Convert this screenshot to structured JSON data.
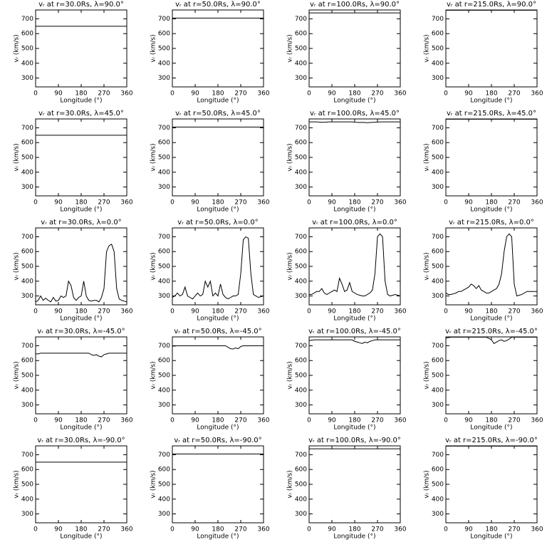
{
  "chart_data": [
    {
      "type": "line",
      "title": "vᵣ at r=30.0Rs, λ=90.0°",
      "xlabel": "Longitude (°)",
      "ylabel": "vᵣ (km/s)",
      "x": [
        0,
        360
      ],
      "values": [
        650,
        650
      ],
      "color": "#000000",
      "xlim": [
        0,
        360
      ],
      "ylim": [
        240,
        760
      ],
      "xticks": [
        0,
        90,
        180,
        270,
        360
      ],
      "yticks": [
        300,
        400,
        500,
        600,
        700
      ]
    },
    {
      "type": "line",
      "title": "vᵣ at r=50.0Rs, λ=90.0°",
      "xlabel": "Longitude (°)",
      "ylabel": "vᵣ (km/s)",
      "x": [
        0,
        360
      ],
      "values": [
        705,
        705
      ],
      "color": "#000000",
      "xlim": [
        0,
        360
      ],
      "ylim": [
        240,
        760
      ],
      "xticks": [
        0,
        90,
        180,
        270,
        360
      ],
      "yticks": [
        300,
        400,
        500,
        600,
        700
      ]
    },
    {
      "type": "line",
      "title": "vᵣ at r=100.0Rs, λ=90.0°",
      "xlabel": "Longitude (°)",
      "ylabel": "vᵣ (km/s)",
      "x": [
        0,
        360
      ],
      "values": [
        740,
        740
      ],
      "color": "#000000",
      "xlim": [
        0,
        360
      ],
      "ylim": [
        240,
        760
      ],
      "xticks": [
        0,
        90,
        180,
        270,
        360
      ],
      "yticks": [
        300,
        400,
        500,
        600,
        700
      ]
    },
    {
      "type": "line",
      "title": "vᵣ at r=215.0Rs, λ=90.0°",
      "xlabel": "Longitude (°)",
      "ylabel": "vᵣ (km/s)",
      "x": [
        0,
        360
      ],
      "values": [
        758,
        758
      ],
      "color": "#000000",
      "xlim": [
        0,
        360
      ],
      "ylim": [
        240,
        760
      ],
      "xticks": [
        0,
        90,
        180,
        270,
        360
      ],
      "yticks": [
        300,
        400,
        500,
        600,
        700
      ]
    },
    {
      "type": "line",
      "title": "vᵣ at r=30.0Rs, λ=45.0°",
      "xlabel": "Longitude (°)",
      "ylabel": "vᵣ (km/s)",
      "x": [
        0,
        360
      ],
      "values": [
        650,
        650
      ],
      "color": "#000000",
      "xlim": [
        0,
        360
      ],
      "ylim": [
        240,
        760
      ],
      "xticks": [
        0,
        90,
        180,
        270,
        360
      ],
      "yticks": [
        300,
        400,
        500,
        600,
        700
      ]
    },
    {
      "type": "line",
      "title": "vᵣ at r=50.0Rs, λ=45.0°",
      "xlabel": "Longitude (°)",
      "ylabel": "vᵣ (km/s)",
      "x": [
        0,
        360
      ],
      "values": [
        705,
        705
      ],
      "color": "#000000",
      "xlim": [
        0,
        360
      ],
      "ylim": [
        240,
        760
      ],
      "xticks": [
        0,
        90,
        180,
        270,
        360
      ],
      "yticks": [
        300,
        400,
        500,
        600,
        700
      ]
    },
    {
      "type": "line",
      "title": "vᵣ at r=100.0Rs, λ=45.0°",
      "xlabel": "Longitude (°)",
      "ylabel": "vᵣ (km/s)",
      "x": [
        0,
        10,
        20,
        30,
        40,
        50,
        60,
        70,
        80,
        90,
        100,
        110,
        120,
        130,
        140,
        150,
        160,
        170,
        180,
        190,
        200,
        210,
        220,
        230,
        240,
        250,
        260,
        270,
        280,
        290,
        300,
        310,
        320,
        330,
        340,
        350,
        360
      ],
      "values": [
        740,
        740,
        740,
        740,
        739,
        738,
        738,
        739,
        740,
        740,
        740,
        740,
        740,
        740,
        740,
        740,
        740,
        740,
        738,
        737,
        736,
        737,
        736,
        735,
        736,
        737,
        738,
        739,
        740,
        740,
        740,
        740,
        740,
        740,
        740,
        740,
        740
      ],
      "color": "#000000",
      "xlim": [
        0,
        360
      ],
      "ylim": [
        240,
        760
      ],
      "xticks": [
        0,
        90,
        180,
        270,
        360
      ],
      "yticks": [
        300,
        400,
        500,
        600,
        700
      ]
    },
    {
      "type": "line",
      "title": "vᵣ at r=215.0Rs, λ=45.0°",
      "xlabel": "Longitude (°)",
      "ylabel": "vᵣ (km/s)",
      "x": [
        0,
        360
      ],
      "values": [
        758,
        758
      ],
      "color": "#000000",
      "xlim": [
        0,
        360
      ],
      "ylim": [
        240,
        760
      ],
      "xticks": [
        0,
        90,
        180,
        270,
        360
      ],
      "yticks": [
        300,
        400,
        500,
        600,
        700
      ]
    },
    {
      "type": "line",
      "title": "vᵣ at r=30.0Rs, λ=0.0°",
      "xlabel": "Longitude (°)",
      "ylabel": "vᵣ (km/s)",
      "x": [
        0,
        10,
        20,
        30,
        40,
        50,
        60,
        70,
        80,
        90,
        100,
        110,
        120,
        130,
        140,
        150,
        160,
        170,
        180,
        190,
        200,
        210,
        220,
        230,
        240,
        250,
        260,
        270,
        280,
        290,
        300,
        310,
        320,
        330,
        340,
        350,
        360
      ],
      "values": [
        260,
        270,
        300,
        270,
        285,
        270,
        260,
        290,
        265,
        270,
        300,
        290,
        300,
        400,
        370,
        290,
        270,
        290,
        300,
        400,
        300,
        270,
        265,
        270,
        270,
        260,
        290,
        350,
        600,
        640,
        650,
        600,
        350,
        280,
        270,
        265,
        260
      ],
      "color": "#000000",
      "xlim": [
        0,
        360
      ],
      "ylim": [
        240,
        760
      ],
      "xticks": [
        0,
        90,
        180,
        270,
        360
      ],
      "yticks": [
        300,
        400,
        500,
        600,
        700
      ]
    },
    {
      "type": "line",
      "title": "vᵣ at r=50.0Rs, λ=0.0°",
      "xlabel": "Longitude (°)",
      "ylabel": "vᵣ (km/s)",
      "x": [
        0,
        10,
        20,
        30,
        40,
        50,
        60,
        70,
        80,
        90,
        100,
        110,
        120,
        130,
        140,
        150,
        160,
        170,
        180,
        190,
        200,
        210,
        220,
        230,
        240,
        250,
        260,
        270,
        280,
        290,
        300,
        310,
        320,
        330,
        340,
        350,
        360
      ],
      "values": [
        290,
        300,
        320,
        300,
        310,
        360,
        300,
        290,
        280,
        300,
        320,
        300,
        310,
        400,
        360,
        400,
        300,
        320,
        300,
        380,
        310,
        290,
        280,
        290,
        300,
        300,
        310,
        450,
        680,
        700,
        690,
        450,
        310,
        300,
        290,
        295,
        300
      ],
      "color": "#000000",
      "xlim": [
        0,
        360
      ],
      "ylim": [
        240,
        760
      ],
      "xticks": [
        0,
        90,
        180,
        270,
        360
      ],
      "yticks": [
        300,
        400,
        500,
        600,
        700
      ]
    },
    {
      "type": "line",
      "title": "vᵣ at r=100.0Rs, λ=0.0°",
      "xlabel": "Longitude (°)",
      "ylabel": "vᵣ (km/s)",
      "x": [
        0,
        10,
        20,
        30,
        40,
        50,
        60,
        70,
        80,
        90,
        100,
        110,
        120,
        130,
        140,
        150,
        160,
        170,
        180,
        190,
        200,
        210,
        220,
        230,
        240,
        250,
        260,
        270,
        280,
        290,
        300,
        310,
        320,
        330,
        340,
        350,
        360
      ],
      "values": [
        310,
        310,
        320,
        330,
        330,
        350,
        320,
        310,
        320,
        330,
        340,
        330,
        420,
        380,
        330,
        340,
        390,
        330,
        320,
        310,
        305,
        300,
        300,
        310,
        320,
        340,
        450,
        700,
        720,
        700,
        400,
        310,
        300,
        305,
        310,
        305,
        300
      ],
      "color": "#000000",
      "xlim": [
        0,
        360
      ],
      "ylim": [
        240,
        760
      ],
      "xticks": [
        0,
        90,
        180,
        270,
        360
      ],
      "yticks": [
        300,
        400,
        500,
        600,
        700
      ]
    },
    {
      "type": "line",
      "title": "vᵣ at r=215.0Rs, λ=0.0°",
      "xlabel": "Longitude (°)",
      "ylabel": "vᵣ (km/s)",
      "x": [
        0,
        10,
        20,
        30,
        40,
        50,
        60,
        70,
        80,
        90,
        100,
        110,
        120,
        130,
        140,
        150,
        160,
        170,
        180,
        190,
        200,
        210,
        220,
        230,
        240,
        250,
        260,
        270,
        280,
        290,
        300,
        310,
        320,
        330,
        340,
        350,
        360
      ],
      "values": [
        320,
        310,
        310,
        315,
        320,
        330,
        330,
        340,
        350,
        360,
        380,
        370,
        350,
        370,
        340,
        330,
        320,
        320,
        330,
        340,
        350,
        380,
        450,
        600,
        700,
        720,
        700,
        380,
        300,
        305,
        310,
        320,
        330,
        330,
        330,
        330,
        330
      ],
      "color": "#000000",
      "xlim": [
        0,
        360
      ],
      "ylim": [
        240,
        760
      ],
      "xticks": [
        0,
        90,
        180,
        270,
        360
      ],
      "yticks": [
        300,
        400,
        500,
        600,
        700
      ]
    },
    {
      "type": "line",
      "title": "vᵣ at r=30.0Rs, λ=-45.0°",
      "xlabel": "Longitude (°)",
      "ylabel": "vᵣ (km/s)",
      "x": [
        0,
        10,
        20,
        30,
        40,
        50,
        60,
        70,
        80,
        90,
        100,
        110,
        120,
        130,
        140,
        150,
        160,
        170,
        180,
        190,
        200,
        210,
        220,
        230,
        240,
        250,
        260,
        270,
        280,
        290,
        300,
        310,
        320,
        330,
        340,
        350,
        360
      ],
      "values": [
        645,
        645,
        650,
        650,
        650,
        650,
        650,
        650,
        650,
        650,
        650,
        650,
        650,
        650,
        650,
        650,
        650,
        650,
        650,
        650,
        650,
        650,
        640,
        635,
        640,
        630,
        625,
        640,
        645,
        650,
        650,
        650,
        650,
        650,
        650,
        650,
        650
      ],
      "color": "#000000",
      "xlim": [
        0,
        360
      ],
      "ylim": [
        240,
        760
      ],
      "xticks": [
        0,
        90,
        180,
        270,
        360
      ],
      "yticks": [
        300,
        400,
        500,
        600,
        700
      ]
    },
    {
      "type": "line",
      "title": "vᵣ at r=50.0Rs, λ=-45.0°",
      "xlabel": "Longitude (°)",
      "ylabel": "vᵣ (km/s)",
      "x": [
        0,
        10,
        20,
        30,
        40,
        50,
        60,
        70,
        80,
        90,
        100,
        110,
        120,
        130,
        140,
        150,
        160,
        170,
        180,
        190,
        200,
        210,
        220,
        230,
        240,
        250,
        260,
        270,
        280,
        290,
        300,
        310,
        320,
        330,
        340,
        350,
        360
      ],
      "values": [
        698,
        698,
        700,
        700,
        700,
        700,
        700,
        700,
        700,
        700,
        700,
        700,
        700,
        700,
        700,
        700,
        700,
        700,
        700,
        700,
        700,
        700,
        690,
        680,
        678,
        685,
        680,
        695,
        700,
        700,
        700,
        700,
        700,
        700,
        700,
        700,
        700
      ],
      "color": "#000000",
      "xlim": [
        0,
        360
      ],
      "ylim": [
        240,
        760
      ],
      "xticks": [
        0,
        90,
        180,
        270,
        360
      ],
      "yticks": [
        300,
        400,
        500,
        600,
        700
      ]
    },
    {
      "type": "line",
      "title": "vᵣ at r=100.0Rs, λ=-45.0°",
      "xlabel": "Longitude (°)",
      "ylabel": "vᵣ (km/s)",
      "x": [
        0,
        10,
        20,
        30,
        40,
        50,
        60,
        70,
        80,
        90,
        100,
        110,
        120,
        130,
        140,
        150,
        160,
        170,
        180,
        190,
        200,
        210,
        220,
        230,
        240,
        250,
        260,
        270,
        280,
        290,
        300,
        310,
        320,
        330,
        340,
        350,
        360
      ],
      "values": [
        735,
        738,
        740,
        740,
        740,
        740,
        740,
        740,
        740,
        740,
        740,
        740,
        740,
        740,
        740,
        740,
        740,
        740,
        730,
        725,
        720,
        715,
        725,
        720,
        730,
        735,
        740,
        740,
        740,
        740,
        740,
        740,
        740,
        740,
        740,
        740,
        740
      ],
      "color": "#000000",
      "xlim": [
        0,
        360
      ],
      "ylim": [
        240,
        760
      ],
      "xticks": [
        0,
        90,
        180,
        270,
        360
      ],
      "yticks": [
        300,
        400,
        500,
        600,
        700
      ]
    },
    {
      "type": "line",
      "title": "vᵣ at r=215.0Rs, λ=-45.0°",
      "xlabel": "Longitude (°)",
      "ylabel": "vᵣ (km/s)",
      "x": [
        0,
        10,
        20,
        30,
        40,
        50,
        60,
        70,
        80,
        90,
        100,
        110,
        120,
        130,
        140,
        150,
        160,
        170,
        180,
        190,
        200,
        210,
        220,
        230,
        240,
        250,
        260,
        270,
        280,
        290,
        300,
        310,
        320,
        330,
        340,
        350,
        360
      ],
      "values": [
        752,
        755,
        758,
        758,
        758,
        758,
        758,
        758,
        758,
        758,
        758,
        758,
        758,
        758,
        758,
        758,
        758,
        750,
        740,
        715,
        725,
        735,
        740,
        730,
        735,
        745,
        758,
        758,
        758,
        758,
        758,
        758,
        758,
        758,
        758,
        758,
        758
      ],
      "color": "#000000",
      "xlim": [
        0,
        360
      ],
      "ylim": [
        240,
        760
      ],
      "xticks": [
        0,
        90,
        180,
        270,
        360
      ],
      "yticks": [
        300,
        400,
        500,
        600,
        700
      ]
    },
    {
      "type": "line",
      "title": "vᵣ at r=30.0Rs, λ=-90.0°",
      "xlabel": "Longitude (°)",
      "ylabel": "vᵣ (km/s)",
      "x": [
        0,
        360
      ],
      "values": [
        650,
        650
      ],
      "color": "#000000",
      "xlim": [
        0,
        360
      ],
      "ylim": [
        240,
        760
      ],
      "xticks": [
        0,
        90,
        180,
        270,
        360
      ],
      "yticks": [
        300,
        400,
        500,
        600,
        700
      ]
    },
    {
      "type": "line",
      "title": "vᵣ at r=50.0Rs, λ=-90.0°",
      "xlabel": "Longitude (°)",
      "ylabel": "vᵣ (km/s)",
      "x": [
        0,
        360
      ],
      "values": [
        705,
        705
      ],
      "color": "#000000",
      "xlim": [
        0,
        360
      ],
      "ylim": [
        240,
        760
      ],
      "xticks": [
        0,
        90,
        180,
        270,
        360
      ],
      "yticks": [
        300,
        400,
        500,
        600,
        700
      ]
    },
    {
      "type": "line",
      "title": "vᵣ at r=100.0Rs, λ=-90.0°",
      "xlabel": "Longitude (°)",
      "ylabel": "vᵣ (km/s)",
      "x": [
        0,
        360
      ],
      "values": [
        740,
        740
      ],
      "color": "#000000",
      "xlim": [
        0,
        360
      ],
      "ylim": [
        240,
        760
      ],
      "xticks": [
        0,
        90,
        180,
        270,
        360
      ],
      "yticks": [
        300,
        400,
        500,
        600,
        700
      ]
    },
    {
      "type": "line",
      "title": "vᵣ at r=215.0Rs, λ=-90.0°",
      "xlabel": "Longitude (°)",
      "ylabel": "vᵣ (km/s)",
      "x": [
        0,
        360
      ],
      "values": [
        758,
        758
      ],
      "color": "#000000",
      "xlim": [
        0,
        360
      ],
      "ylim": [
        240,
        760
      ],
      "xticks": [
        0,
        90,
        180,
        270,
        360
      ],
      "yticks": [
        300,
        400,
        500,
        600,
        700
      ]
    }
  ]
}
